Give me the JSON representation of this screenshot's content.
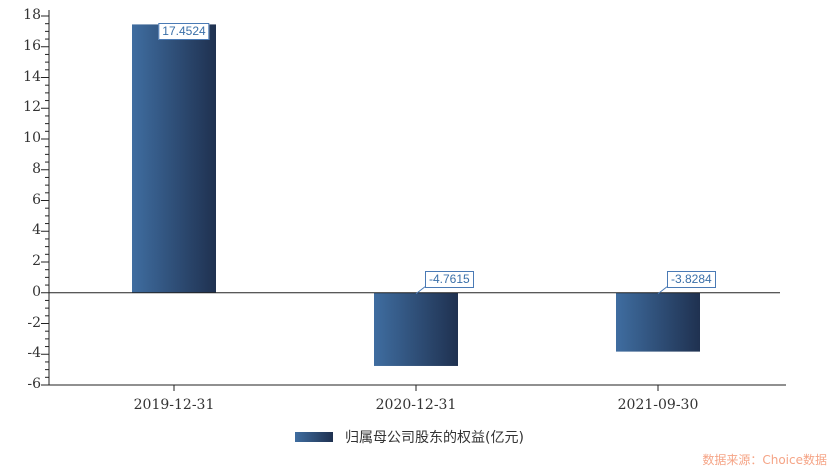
{
  "chart_data": {
    "type": "bar",
    "title": "",
    "xlabel": "",
    "ylabel": "",
    "categories": [
      "2019-12-31",
      "2020-12-31",
      "2021-09-30"
    ],
    "series": [
      {
        "name": "归属母公司股东的权益(亿元)",
        "values": [
          17.4524,
          -4.7615,
          -3.8284
        ]
      }
    ],
    "data_labels": [
      "17.4524",
      "-4.7615",
      "-3.8284"
    ],
    "ylim": [
      -6,
      18
    ],
    "y_major_step": 2,
    "y_minor_step": 0.5,
    "grid": false,
    "legend_position": "bottom"
  },
  "legend": {
    "label": "归属母公司股东的权益(亿元)"
  },
  "source": {
    "text": "数据来源：Choice数据"
  },
  "colors": {
    "bar_gradient_start": "#3f6da0",
    "bar_gradient_end": "#1f3150",
    "label_text": "#3a6fa8",
    "label_border": "#4a7ab5",
    "axis": "#222222",
    "tick_text": "#333333",
    "source_text": "#f5a486",
    "background": "#ffffff"
  }
}
